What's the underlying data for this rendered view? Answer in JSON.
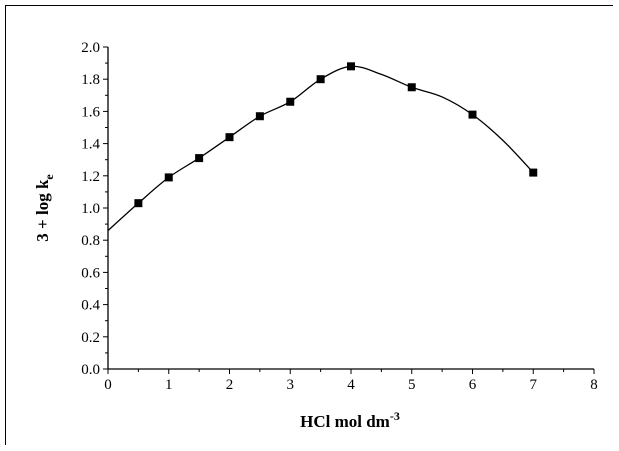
{
  "chart_data": {
    "type": "line",
    "title": "",
    "xlabel": "HCl mol dm",
    "xlabel_superscript": "-3",
    "ylabel": "3 + log k",
    "ylabel_subscript": "e",
    "xlim": [
      0,
      8
    ],
    "ylim": [
      0.0,
      2.0
    ],
    "x_ticks": [
      0,
      1,
      2,
      3,
      4,
      5,
      6,
      7,
      8
    ],
    "y_ticks": [
      0.0,
      0.2,
      0.4,
      0.6,
      0.8,
      1.0,
      1.2,
      1.4,
      1.6,
      1.8,
      2.0
    ],
    "x_tick_labels": [
      "0",
      "1",
      "2",
      "3",
      "4",
      "5",
      "6",
      "7",
      "8"
    ],
    "y_tick_labels": [
      "0.0",
      "0.2",
      "0.4",
      "0.6",
      "0.8",
      "1.0",
      "1.2",
      "1.4",
      "1.6",
      "1.8",
      "2.0"
    ],
    "grid": false,
    "legend": "none",
    "series": [
      {
        "marker": "square",
        "color": "#000000",
        "points": [
          [
            0.5,
            1.03
          ],
          [
            1.0,
            1.19
          ],
          [
            1.5,
            1.31
          ],
          [
            2.0,
            1.44
          ],
          [
            2.5,
            1.57
          ],
          [
            3.0,
            1.66
          ],
          [
            3.5,
            1.8
          ],
          [
            4.0,
            1.88
          ],
          [
            5.0,
            1.75
          ],
          [
            6.0,
            1.58
          ],
          [
            7.0,
            1.22
          ]
        ],
        "curve": [
          [
            0.0,
            0.86
          ],
          [
            0.5,
            1.03
          ],
          [
            1.0,
            1.19
          ],
          [
            1.5,
            1.31
          ],
          [
            2.0,
            1.44
          ],
          [
            2.5,
            1.57
          ],
          [
            3.0,
            1.66
          ],
          [
            3.5,
            1.8
          ],
          [
            4.0,
            1.88
          ],
          [
            4.5,
            1.83
          ],
          [
            5.0,
            1.75
          ],
          [
            5.5,
            1.69
          ],
          [
            6.0,
            1.58
          ],
          [
            6.5,
            1.42
          ],
          [
            7.0,
            1.22
          ]
        ]
      }
    ]
  }
}
